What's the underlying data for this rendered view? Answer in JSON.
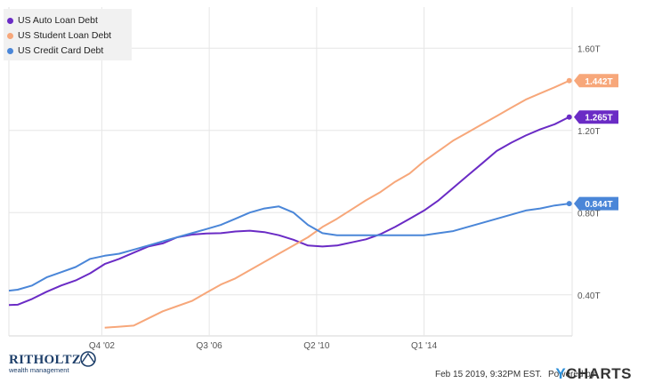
{
  "chart_data": {
    "type": "line",
    "title": "",
    "xlabel": "",
    "ylabel": "",
    "y_unit": "T",
    "ylim": [
      0.2,
      1.8
    ],
    "xlim": [
      1999.7,
      2019.1
    ],
    "grid": true,
    "legend_position": "top-left",
    "x_ticks": [
      {
        "x": 2002.9,
        "label": "Q4 '02"
      },
      {
        "x": 2006.6,
        "label": "Q3 '06"
      },
      {
        "x": 2010.3,
        "label": "Q2 '10"
      },
      {
        "x": 2014.0,
        "label": "Q1 '14"
      }
    ],
    "y_ticks": [
      {
        "y": 1.6,
        "label": "1.60T"
      },
      {
        "y": 1.2,
        "label": "1.20T"
      },
      {
        "y": 0.8,
        "label": "0.80T"
      },
      {
        "y": 0.4,
        "label": "0.40T"
      }
    ],
    "series": [
      {
        "name": "US Auto Loan Debt",
        "color": "#6a2bc5",
        "end_label": "1.265T",
        "points": [
          [
            1999.7,
            0.35
          ],
          [
            2000.0,
            0.352
          ],
          [
            2000.5,
            0.38
          ],
          [
            2001.0,
            0.415
          ],
          [
            2001.5,
            0.445
          ],
          [
            2002.0,
            0.47
          ],
          [
            2002.5,
            0.505
          ],
          [
            2003.0,
            0.55
          ],
          [
            2003.5,
            0.575
          ],
          [
            2004.0,
            0.605
          ],
          [
            2004.5,
            0.635
          ],
          [
            2005.0,
            0.65
          ],
          [
            2005.5,
            0.68
          ],
          [
            2006.0,
            0.693
          ],
          [
            2006.5,
            0.698
          ],
          [
            2007.0,
            0.7
          ],
          [
            2007.5,
            0.708
          ],
          [
            2008.0,
            0.712
          ],
          [
            2008.5,
            0.705
          ],
          [
            2009.0,
            0.69
          ],
          [
            2009.5,
            0.668
          ],
          [
            2010.0,
            0.64
          ],
          [
            2010.5,
            0.635
          ],
          [
            2011.0,
            0.64
          ],
          [
            2011.5,
            0.655
          ],
          [
            2012.0,
            0.67
          ],
          [
            2012.5,
            0.695
          ],
          [
            2013.0,
            0.73
          ],
          [
            2013.5,
            0.77
          ],
          [
            2014.0,
            0.81
          ],
          [
            2014.5,
            0.86
          ],
          [
            2015.0,
            0.92
          ],
          [
            2015.5,
            0.98
          ],
          [
            2016.0,
            1.04
          ],
          [
            2016.5,
            1.1
          ],
          [
            2017.0,
            1.14
          ],
          [
            2017.5,
            1.175
          ],
          [
            2018.0,
            1.205
          ],
          [
            2018.5,
            1.23
          ],
          [
            2019.0,
            1.265
          ]
        ]
      },
      {
        "name": "US Student Loan Debt",
        "color": "#f7a77a",
        "end_label": "1.442T",
        "points": [
          [
            2003.0,
            0.24
          ],
          [
            2003.5,
            0.245
          ],
          [
            2004.0,
            0.25
          ],
          [
            2004.5,
            0.285
          ],
          [
            2005.0,
            0.32
          ],
          [
            2005.5,
            0.345
          ],
          [
            2006.0,
            0.37
          ],
          [
            2006.5,
            0.41
          ],
          [
            2007.0,
            0.45
          ],
          [
            2007.5,
            0.48
          ],
          [
            2008.0,
            0.52
          ],
          [
            2008.5,
            0.56
          ],
          [
            2009.0,
            0.6
          ],
          [
            2009.5,
            0.64
          ],
          [
            2010.0,
            0.68
          ],
          [
            2010.5,
            0.73
          ],
          [
            2011.0,
            0.77
          ],
          [
            2011.5,
            0.815
          ],
          [
            2012.0,
            0.86
          ],
          [
            2012.5,
            0.9
          ],
          [
            2013.0,
            0.95
          ],
          [
            2013.5,
            0.99
          ],
          [
            2014.0,
            1.05
          ],
          [
            2014.5,
            1.1
          ],
          [
            2015.0,
            1.15
          ],
          [
            2015.5,
            1.19
          ],
          [
            2016.0,
            1.23
          ],
          [
            2016.5,
            1.27
          ],
          [
            2017.0,
            1.31
          ],
          [
            2017.5,
            1.35
          ],
          [
            2018.0,
            1.38
          ],
          [
            2018.5,
            1.41
          ],
          [
            2019.0,
            1.442
          ]
        ]
      },
      {
        "name": "US Credit Card Debt",
        "color": "#4a86d8",
        "end_label": "0.844T",
        "points": [
          [
            1999.7,
            0.42
          ],
          [
            2000.0,
            0.425
          ],
          [
            2000.5,
            0.445
          ],
          [
            2001.0,
            0.485
          ],
          [
            2001.5,
            0.51
          ],
          [
            2002.0,
            0.535
          ],
          [
            2002.5,
            0.575
          ],
          [
            2003.0,
            0.59
          ],
          [
            2003.5,
            0.6
          ],
          [
            2004.0,
            0.62
          ],
          [
            2004.5,
            0.64
          ],
          [
            2005.0,
            0.66
          ],
          [
            2005.5,
            0.68
          ],
          [
            2006.0,
            0.7
          ],
          [
            2006.5,
            0.72
          ],
          [
            2007.0,
            0.74
          ],
          [
            2007.5,
            0.77
          ],
          [
            2008.0,
            0.8
          ],
          [
            2008.5,
            0.82
          ],
          [
            2009.0,
            0.83
          ],
          [
            2009.5,
            0.8
          ],
          [
            2010.0,
            0.74
          ],
          [
            2010.5,
            0.7
          ],
          [
            2011.0,
            0.69
          ],
          [
            2011.5,
            0.69
          ],
          [
            2012.0,
            0.69
          ],
          [
            2012.5,
            0.69
          ],
          [
            2013.0,
            0.69
          ],
          [
            2013.5,
            0.69
          ],
          [
            2014.0,
            0.69
          ],
          [
            2014.5,
            0.7
          ],
          [
            2015.0,
            0.71
          ],
          [
            2015.5,
            0.73
          ],
          [
            2016.0,
            0.75
          ],
          [
            2016.5,
            0.77
          ],
          [
            2017.0,
            0.79
          ],
          [
            2017.5,
            0.81
          ],
          [
            2018.0,
            0.82
          ],
          [
            2018.5,
            0.835
          ],
          [
            2019.0,
            0.844
          ]
        ]
      }
    ]
  },
  "footer": {
    "timestamp": "Feb 15 2019, 9:32PM EST.",
    "powered_by": "Powered by",
    "brand_y": "Y",
    "brand_rest": "CHARTS",
    "logo_name": "RITHOLTZ",
    "logo_tagline": "wealth management"
  }
}
